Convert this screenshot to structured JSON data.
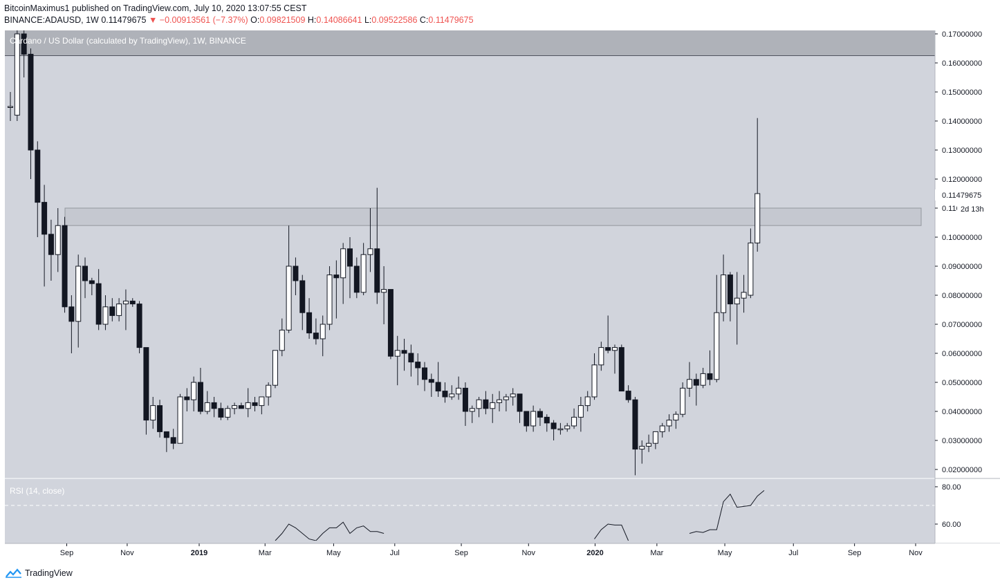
{
  "header": {
    "publisher_line": "BitcoinMaximus1 published on TradingView.com, July 10, 2020 13:07:55 CEST",
    "symbol": "BINANCE:ADAUSD, 1W",
    "last": "0.11479675",
    "change_arrow": "▼",
    "change": "−0.00913561 (−7.37%)",
    "o_label": "O:",
    "o": "0.09821509",
    "h_label": "H:",
    "h": "0.14086641",
    "l_label": "L:",
    "l": "0.09522586",
    "c_label": "C:",
    "c": "0.11479675"
  },
  "chart_title": "Cardano / US Dollar (calculated by TradingView), 1W, BINANCE",
  "rsi_label": "RSI (14, close)",
  "price_axis": {
    "ticks": [
      "0.17000000",
      "0.16000000",
      "0.15000000",
      "0.14000000",
      "0.13000000",
      "0.12000000",
      "0.11000000",
      "0.10000000",
      "0.09000000",
      "0.08000000",
      "0.07000000",
      "0.06000000",
      "0.05000000",
      "0.04000000",
      "0.03000000",
      "0.02000000"
    ],
    "last_price_label": "0.11479675",
    "countdown_label": "2d 13h"
  },
  "rsi_axis": {
    "ticks": [
      "80.00",
      "60.00"
    ]
  },
  "time_axis": [
    "Sep",
    "Nov",
    "2019",
    "Mar",
    "May",
    "Jul",
    "Sep",
    "Nov",
    "2020",
    "Mar",
    "May",
    "Jul",
    "Sep",
    "Nov"
  ],
  "footer": {
    "brand": "TradingView"
  },
  "colors": {
    "background": "#d1d4dc",
    "resistance_band": "#c3c6ce",
    "up_candle": "#ffffff",
    "down_candle": "#131722",
    "rsi_line": "#131722"
  },
  "chart_data": [
    {
      "type": "candlestick",
      "title": "Cardano / US Dollar (calculated by TradingView), 1W, BINANCE",
      "x_unit": "week",
      "ylim": [
        0.015,
        0.175
      ],
      "y_scale": "linear",
      "grid": false,
      "bars": [
        {
          "o": 0.145,
          "h": 0.15,
          "l": 0.14,
          "c": 0.145
        },
        {
          "o": 0.142,
          "h": 0.178,
          "l": 0.14,
          "c": 0.17
        },
        {
          "o": 0.17,
          "h": 0.178,
          "l": 0.155,
          "c": 0.163
        },
        {
          "o": 0.163,
          "h": 0.165,
          "l": 0.12,
          "c": 0.13
        },
        {
          "o": 0.13,
          "h": 0.133,
          "l": 0.1,
          "c": 0.112
        },
        {
          "o": 0.112,
          "h": 0.118,
          "l": 0.083,
          "c": 0.101
        },
        {
          "o": 0.101,
          "h": 0.106,
          "l": 0.085,
          "c": 0.094
        },
        {
          "o": 0.094,
          "h": 0.11,
          "l": 0.088,
          "c": 0.104
        },
        {
          "o": 0.104,
          "h": 0.107,
          "l": 0.074,
          "c": 0.076
        },
        {
          "o": 0.076,
          "h": 0.08,
          "l": 0.06,
          "c": 0.071
        },
        {
          "o": 0.071,
          "h": 0.094,
          "l": 0.062,
          "c": 0.09
        },
        {
          "o": 0.09,
          "h": 0.093,
          "l": 0.079,
          "c": 0.085
        },
        {
          "o": 0.085,
          "h": 0.086,
          "l": 0.08,
          "c": 0.084
        },
        {
          "o": 0.084,
          "h": 0.089,
          "l": 0.068,
          "c": 0.07
        },
        {
          "o": 0.07,
          "h": 0.08,
          "l": 0.068,
          "c": 0.076
        },
        {
          "o": 0.076,
          "h": 0.079,
          "l": 0.071,
          "c": 0.073
        },
        {
          "o": 0.073,
          "h": 0.079,
          "l": 0.071,
          "c": 0.077
        },
        {
          "o": 0.077,
          "h": 0.082,
          "l": 0.068,
          "c": 0.078
        },
        {
          "o": 0.078,
          "h": 0.079,
          "l": 0.076,
          "c": 0.077
        },
        {
          "o": 0.077,
          "h": 0.078,
          "l": 0.06,
          "c": 0.062
        },
        {
          "o": 0.062,
          "h": 0.062,
          "l": 0.032,
          "c": 0.037
        },
        {
          "o": 0.037,
          "h": 0.045,
          "l": 0.034,
          "c": 0.042
        },
        {
          "o": 0.042,
          "h": 0.044,
          "l": 0.031,
          "c": 0.033
        },
        {
          "o": 0.033,
          "h": 0.033,
          "l": 0.026,
          "c": 0.031
        },
        {
          "o": 0.031,
          "h": 0.034,
          "l": 0.027,
          "c": 0.029
        },
        {
          "o": 0.029,
          "h": 0.046,
          "l": 0.029,
          "c": 0.045
        },
        {
          "o": 0.045,
          "h": 0.048,
          "l": 0.04,
          "c": 0.044
        },
        {
          "o": 0.044,
          "h": 0.052,
          "l": 0.04,
          "c": 0.05
        },
        {
          "o": 0.05,
          "h": 0.055,
          "l": 0.039,
          "c": 0.04
        },
        {
          "o": 0.04,
          "h": 0.047,
          "l": 0.039,
          "c": 0.043
        },
        {
          "o": 0.043,
          "h": 0.045,
          "l": 0.038,
          "c": 0.041
        },
        {
          "o": 0.041,
          "h": 0.043,
          "l": 0.037,
          "c": 0.038
        },
        {
          "o": 0.038,
          "h": 0.042,
          "l": 0.037,
          "c": 0.041
        },
        {
          "o": 0.041,
          "h": 0.043,
          "l": 0.039,
          "c": 0.042
        },
        {
          "o": 0.042,
          "h": 0.043,
          "l": 0.041,
          "c": 0.041
        },
        {
          "o": 0.041,
          "h": 0.048,
          "l": 0.038,
          "c": 0.043
        },
        {
          "o": 0.043,
          "h": 0.045,
          "l": 0.04,
          "c": 0.042
        },
        {
          "o": 0.042,
          "h": 0.044,
          "l": 0.039,
          "c": 0.045
        },
        {
          "o": 0.045,
          "h": 0.05,
          "l": 0.042,
          "c": 0.049
        },
        {
          "o": 0.049,
          "h": 0.06,
          "l": 0.048,
          "c": 0.061
        },
        {
          "o": 0.061,
          "h": 0.072,
          "l": 0.059,
          "c": 0.068
        },
        {
          "o": 0.068,
          "h": 0.104,
          "l": 0.067,
          "c": 0.09
        },
        {
          "o": 0.09,
          "h": 0.093,
          "l": 0.08,
          "c": 0.085
        },
        {
          "o": 0.085,
          "h": 0.087,
          "l": 0.068,
          "c": 0.074
        },
        {
          "o": 0.074,
          "h": 0.079,
          "l": 0.065,
          "c": 0.067
        },
        {
          "o": 0.067,
          "h": 0.072,
          "l": 0.063,
          "c": 0.065
        },
        {
          "o": 0.065,
          "h": 0.073,
          "l": 0.059,
          "c": 0.07
        },
        {
          "o": 0.07,
          "h": 0.09,
          "l": 0.068,
          "c": 0.087
        },
        {
          "o": 0.087,
          "h": 0.092,
          "l": 0.072,
          "c": 0.086
        },
        {
          "o": 0.086,
          "h": 0.098,
          "l": 0.077,
          "c": 0.096
        },
        {
          "o": 0.096,
          "h": 0.1,
          "l": 0.079,
          "c": 0.09
        },
        {
          "o": 0.09,
          "h": 0.093,
          "l": 0.079,
          "c": 0.081
        },
        {
          "o": 0.081,
          "h": 0.098,
          "l": 0.08,
          "c": 0.094
        },
        {
          "o": 0.094,
          "h": 0.11,
          "l": 0.088,
          "c": 0.096
        },
        {
          "o": 0.096,
          "h": 0.117,
          "l": 0.077,
          "c": 0.081
        },
        {
          "o": 0.081,
          "h": 0.09,
          "l": 0.07,
          "c": 0.082
        },
        {
          "o": 0.082,
          "h": 0.082,
          "l": 0.058,
          "c": 0.059
        },
        {
          "o": 0.059,
          "h": 0.066,
          "l": 0.049,
          "c": 0.061
        },
        {
          "o": 0.061,
          "h": 0.065,
          "l": 0.054,
          "c": 0.06
        },
        {
          "o": 0.06,
          "h": 0.063,
          "l": 0.052,
          "c": 0.057
        },
        {
          "o": 0.057,
          "h": 0.06,
          "l": 0.049,
          "c": 0.055
        },
        {
          "o": 0.055,
          "h": 0.057,
          "l": 0.047,
          "c": 0.051
        },
        {
          "o": 0.051,
          "h": 0.053,
          "l": 0.045,
          "c": 0.05
        },
        {
          "o": 0.05,
          "h": 0.057,
          "l": 0.045,
          "c": 0.047
        },
        {
          "o": 0.047,
          "h": 0.05,
          "l": 0.043,
          "c": 0.045
        },
        {
          "o": 0.045,
          "h": 0.049,
          "l": 0.044,
          "c": 0.046
        },
        {
          "o": 0.046,
          "h": 0.052,
          "l": 0.044,
          "c": 0.048
        },
        {
          "o": 0.048,
          "h": 0.05,
          "l": 0.035,
          "c": 0.04
        },
        {
          "o": 0.04,
          "h": 0.042,
          "l": 0.036,
          "c": 0.041
        },
        {
          "o": 0.041,
          "h": 0.045,
          "l": 0.038,
          "c": 0.044
        },
        {
          "o": 0.044,
          "h": 0.047,
          "l": 0.039,
          "c": 0.041
        },
        {
          "o": 0.041,
          "h": 0.046,
          "l": 0.036,
          "c": 0.043
        },
        {
          "o": 0.043,
          "h": 0.047,
          "l": 0.04,
          "c": 0.044
        },
        {
          "o": 0.044,
          "h": 0.046,
          "l": 0.04,
          "c": 0.045
        },
        {
          "o": 0.045,
          "h": 0.048,
          "l": 0.042,
          "c": 0.046
        },
        {
          "o": 0.046,
          "h": 0.046,
          "l": 0.036,
          "c": 0.04
        },
        {
          "o": 0.04,
          "h": 0.04,
          "l": 0.033,
          "c": 0.035
        },
        {
          "o": 0.035,
          "h": 0.042,
          "l": 0.033,
          "c": 0.04
        },
        {
          "o": 0.04,
          "h": 0.041,
          "l": 0.035,
          "c": 0.038
        },
        {
          "o": 0.038,
          "h": 0.039,
          "l": 0.033,
          "c": 0.036
        },
        {
          "o": 0.036,
          "h": 0.037,
          "l": 0.03,
          "c": 0.034
        },
        {
          "o": 0.034,
          "h": 0.036,
          "l": 0.032,
          "c": 0.034
        },
        {
          "o": 0.034,
          "h": 0.036,
          "l": 0.033,
          "c": 0.035
        },
        {
          "o": 0.035,
          "h": 0.041,
          "l": 0.034,
          "c": 0.038
        },
        {
          "o": 0.038,
          "h": 0.045,
          "l": 0.033,
          "c": 0.042
        },
        {
          "o": 0.042,
          "h": 0.047,
          "l": 0.04,
          "c": 0.045
        },
        {
          "o": 0.045,
          "h": 0.06,
          "l": 0.044,
          "c": 0.056
        },
        {
          "o": 0.056,
          "h": 0.064,
          "l": 0.054,
          "c": 0.062
        },
        {
          "o": 0.062,
          "h": 0.073,
          "l": 0.06,
          "c": 0.061
        },
        {
          "o": 0.061,
          "h": 0.063,
          "l": 0.053,
          "c": 0.062
        },
        {
          "o": 0.062,
          "h": 0.063,
          "l": 0.047,
          "c": 0.047
        },
        {
          "o": 0.047,
          "h": 0.049,
          "l": 0.043,
          "c": 0.044
        },
        {
          "o": 0.044,
          "h": 0.045,
          "l": 0.018,
          "c": 0.027
        },
        {
          "o": 0.027,
          "h": 0.03,
          "l": 0.022,
          "c": 0.028
        },
        {
          "o": 0.028,
          "h": 0.032,
          "l": 0.026,
          "c": 0.029
        },
        {
          "o": 0.029,
          "h": 0.033,
          "l": 0.027,
          "c": 0.033
        },
        {
          "o": 0.033,
          "h": 0.036,
          "l": 0.031,
          "c": 0.035
        },
        {
          "o": 0.035,
          "h": 0.039,
          "l": 0.033,
          "c": 0.037
        },
        {
          "o": 0.037,
          "h": 0.04,
          "l": 0.034,
          "c": 0.039
        },
        {
          "o": 0.039,
          "h": 0.05,
          "l": 0.038,
          "c": 0.048
        },
        {
          "o": 0.048,
          "h": 0.057,
          "l": 0.045,
          "c": 0.051
        },
        {
          "o": 0.051,
          "h": 0.053,
          "l": 0.042,
          "c": 0.049
        },
        {
          "o": 0.049,
          "h": 0.055,
          "l": 0.048,
          "c": 0.053
        },
        {
          "o": 0.053,
          "h": 0.061,
          "l": 0.049,
          "c": 0.051
        },
        {
          "o": 0.051,
          "h": 0.087,
          "l": 0.05,
          "c": 0.074
        },
        {
          "o": 0.074,
          "h": 0.094,
          "l": 0.071,
          "c": 0.087
        },
        {
          "o": 0.087,
          "h": 0.088,
          "l": 0.071,
          "c": 0.077
        },
        {
          "o": 0.077,
          "h": 0.088,
          "l": 0.063,
          "c": 0.079
        },
        {
          "o": 0.079,
          "h": 0.087,
          "l": 0.074,
          "c": 0.081
        },
        {
          "o": 0.08,
          "h": 0.103,
          "l": 0.079,
          "c": 0.098
        },
        {
          "o": 0.098,
          "h": 0.141,
          "l": 0.095,
          "c": 0.115
        }
      ],
      "annotations": [
        {
          "type": "zone",
          "y_from": 0.1625,
          "y_to": 0.175
        },
        {
          "type": "zone",
          "y_from": 0.104,
          "y_to": 0.11
        }
      ],
      "last_price": 0.11479675,
      "y_ticks": [
        0.17,
        0.16,
        0.15,
        0.14,
        0.13,
        0.12,
        0.11,
        0.1,
        0.09,
        0.08,
        0.07,
        0.06,
        0.05,
        0.04,
        0.03,
        0.02
      ]
    },
    {
      "type": "line",
      "title": "RSI (14, close)",
      "ylim": [
        53,
        83
      ],
      "reference_line": 70,
      "y_ticks": [
        80,
        60
      ],
      "segments": [
        {
          "x_start_bar": 39,
          "values": [
            50,
            55,
            60,
            58,
            55,
            52,
            50,
            55,
            58,
            58,
            61,
            55,
            58,
            59,
            56,
            56,
            55
          ]
        },
        {
          "x_start_bar": 86,
          "values": [
            52,
            57,
            60,
            59.5,
            59.5,
            50
          ]
        },
        {
          "x_start_bar": 100,
          "values": [
            55,
            56,
            55.5,
            57,
            57,
            72,
            76,
            69,
            69.5,
            70,
            75,
            78
          ]
        }
      ]
    }
  ]
}
